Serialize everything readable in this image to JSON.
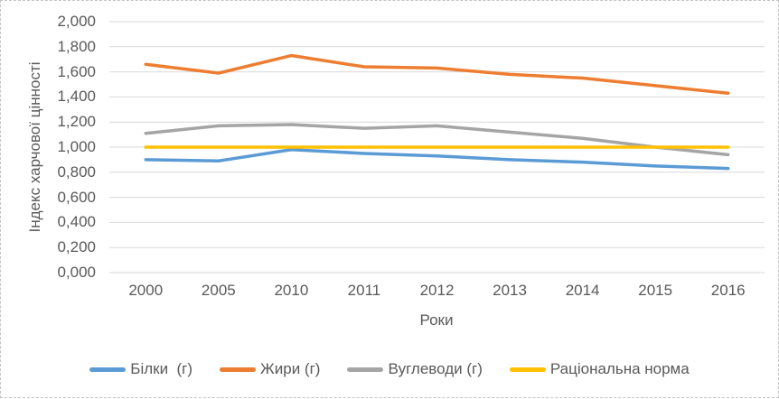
{
  "chart_data": {
    "type": "line",
    "title": "",
    "xlabel": "Роки",
    "ylabel": "Індекс харчової цінності",
    "x": [
      "2000",
      "2005",
      "2010",
      "2011",
      "2012",
      "2013",
      "2014",
      "2015",
      "2016"
    ],
    "series": [
      {
        "name": "Білки  (г)",
        "color": "#5B9BD5",
        "values": [
          0.9,
          0.89,
          0.98,
          0.95,
          0.93,
          0.9,
          0.88,
          0.85,
          0.83
        ]
      },
      {
        "name": "Жири (г)",
        "color": "#ED7D31",
        "values": [
          1.66,
          1.59,
          1.73,
          1.64,
          1.63,
          1.58,
          1.55,
          1.49,
          1.43
        ]
      },
      {
        "name": "Вуглеводи (г)",
        "color": "#A5A5A5",
        "values": [
          1.11,
          1.17,
          1.18,
          1.15,
          1.17,
          1.12,
          1.07,
          1.0,
          0.94
        ]
      },
      {
        "name": "Раціональна норма",
        "color": "#FFC000",
        "values": [
          1.0,
          1.0,
          1.0,
          1.0,
          1.0,
          1.0,
          1.0,
          1.0,
          1.0
        ]
      }
    ],
    "ylim": [
      0,
      2
    ],
    "y_tick_labels": [
      "0,000",
      "0,200",
      "0,400",
      "0,600",
      "0,800",
      "1,000",
      "1,200",
      "1,400",
      "1,600",
      "1,800",
      "2,000"
    ],
    "grid": "horizontal",
    "legend_position": "bottom",
    "colors": {
      "text": "#595959",
      "gridline": "#D9D9D9",
      "background": "#FFFFFF",
      "border": "#C3C3C3"
    }
  }
}
